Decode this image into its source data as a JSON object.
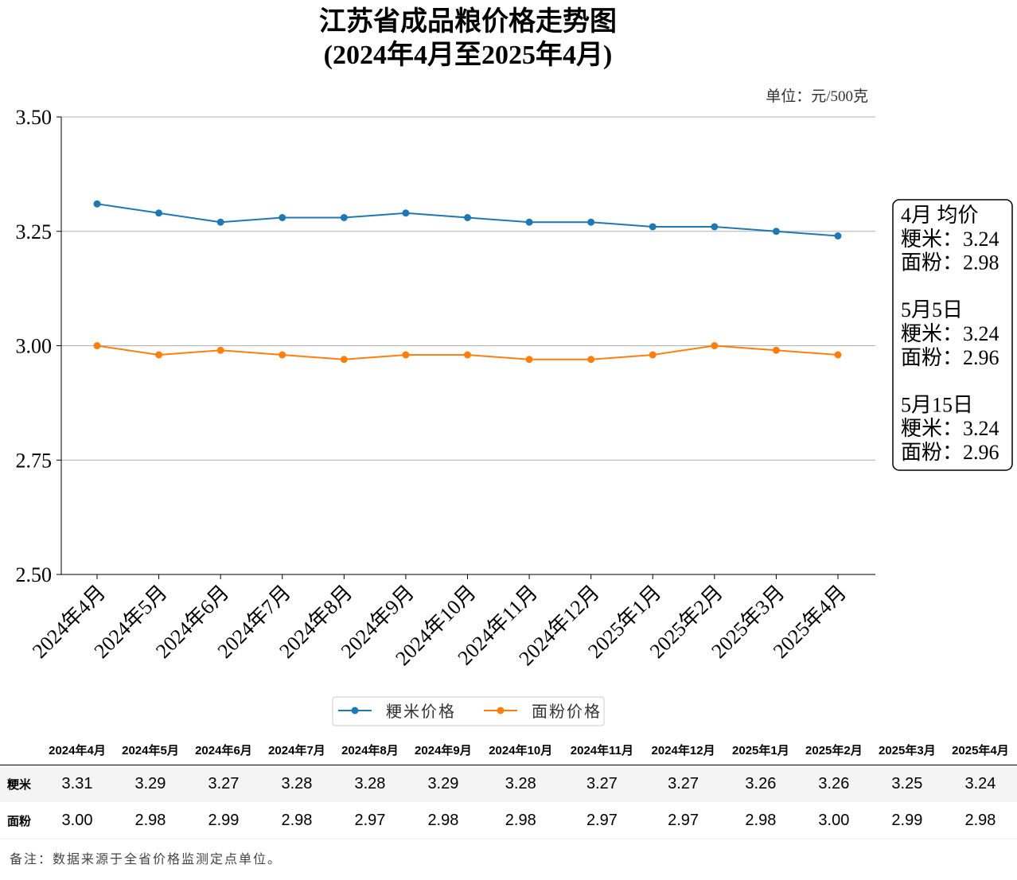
{
  "chart_data": {
    "type": "line",
    "title": "江苏省成品粮价格走势图",
    "subtitle": "(2024年4月至2025年4月)",
    "unit_label": "单位：元/500克",
    "categories": [
      "2024年4月",
      "2024年5月",
      "2024年6月",
      "2024年7月",
      "2024年8月",
      "2024年9月",
      "2024年10月",
      "2024年11月",
      "2024年12月",
      "2025年1月",
      "2025年2月",
      "2025年3月",
      "2025年4月"
    ],
    "series": [
      {
        "name": "粳米价格",
        "row_label": "粳米",
        "color": "#1f77b4",
        "values": [
          3.31,
          3.29,
          3.27,
          3.28,
          3.28,
          3.29,
          3.28,
          3.27,
          3.27,
          3.26,
          3.26,
          3.25,
          3.24
        ]
      },
      {
        "name": "面粉价格",
        "row_label": "面粉",
        "color": "#ff7f0e",
        "values": [
          3.0,
          2.98,
          2.99,
          2.98,
          2.97,
          2.98,
          2.98,
          2.97,
          2.97,
          2.98,
          3.0,
          2.99,
          2.98
        ]
      }
    ],
    "ylim": [
      2.5,
      3.5
    ],
    "yticks": [
      "2.50",
      "2.75",
      "3.00",
      "3.25",
      "3.50"
    ],
    "grid": "horizontal",
    "legend": "bottom",
    "annotation": [
      "4月 均价",
      "粳米：3.24",
      "面粉：2.98",
      "",
      "5月5日",
      "粳米：3.24",
      "面粉：2.96",
      "",
      "5月15日",
      "粳米：3.24",
      "面粉：2.96"
    ]
  },
  "note": "备注：数据来源于全省价格监测定点单位。"
}
